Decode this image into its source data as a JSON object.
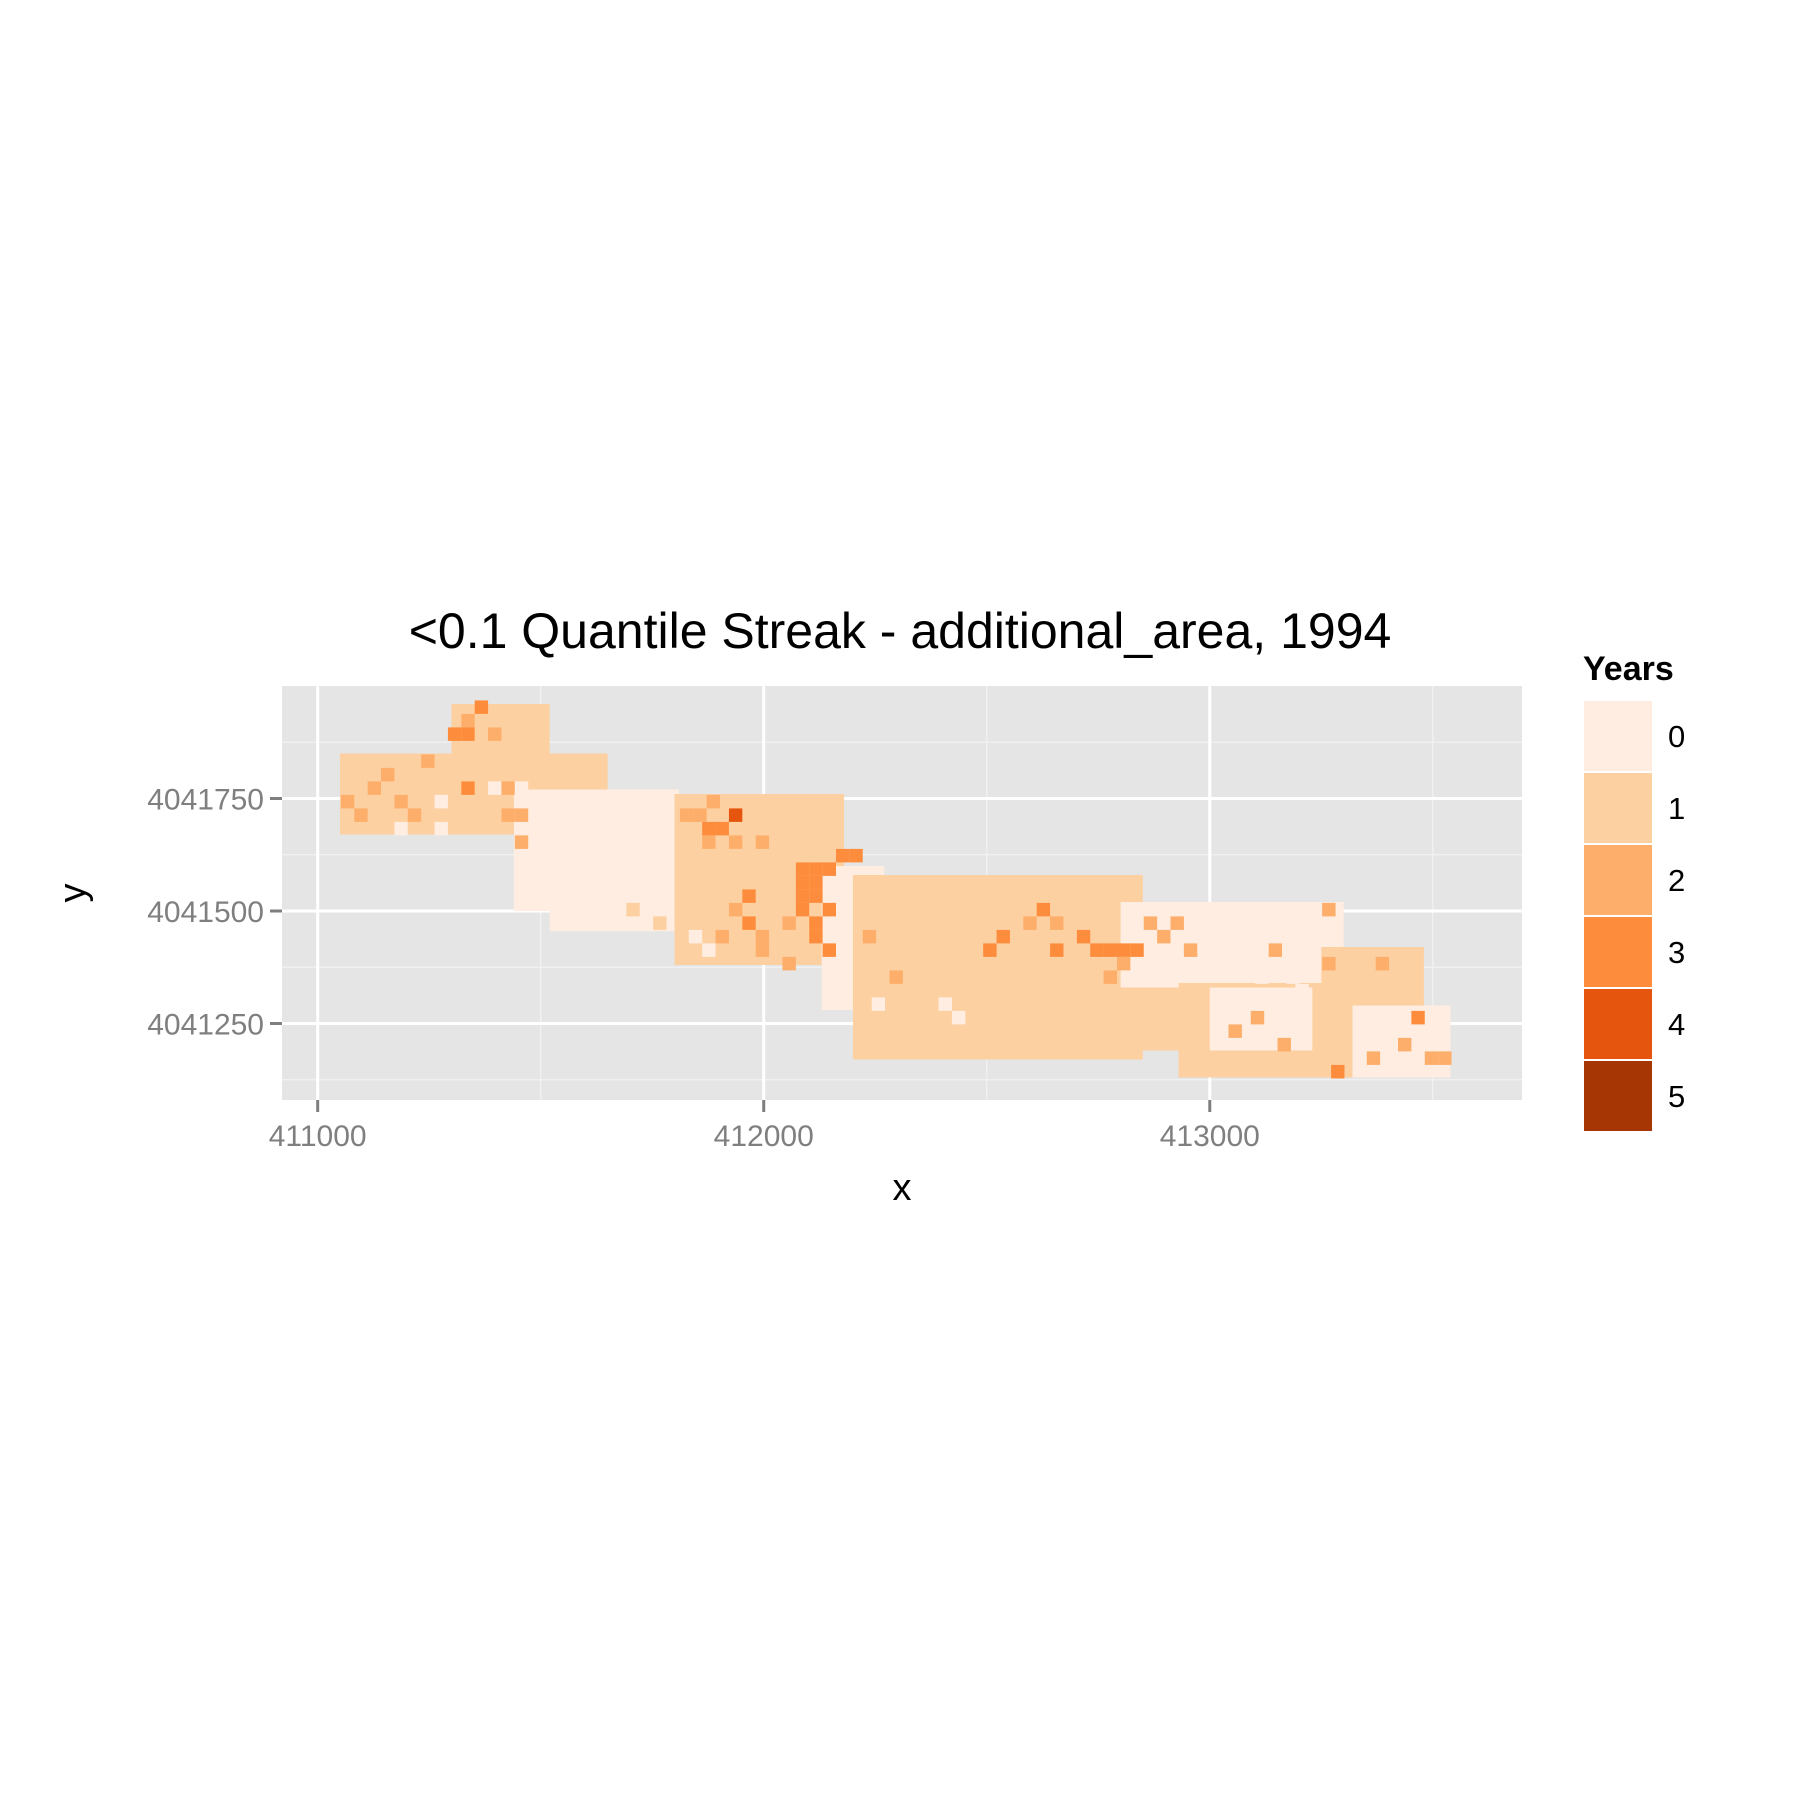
{
  "chart_data": {
    "type": "heatmap",
    "title": "<0.1 Quantile Streak - additional_area, 1994",
    "xlabel": "x",
    "ylabel": "y",
    "xlim": [
      410920,
      413700
    ],
    "ylim": [
      4041080,
      4042000
    ],
    "x_ticks": [
      411000,
      412000,
      413000
    ],
    "x_tick_labels": [
      "411000",
      "412000",
      "413000"
    ],
    "y_ticks": [
      4041250,
      4041500,
      4041750
    ],
    "y_tick_labels": [
      "4041250",
      "4041500",
      "4041750"
    ],
    "grid": true,
    "legend": {
      "title": "Years",
      "position": "right",
      "entries": [
        {
          "label": "0",
          "value": 0,
          "color": "#feede0"
        },
        {
          "label": "1",
          "value": 1,
          "color": "#fdd0a2"
        },
        {
          "label": "2",
          "value": 2,
          "color": "#fdae6b"
        },
        {
          "label": "3",
          "value": 3,
          "color": "#fd8d3c"
        },
        {
          "label": "4",
          "value": 4,
          "color": "#e6550d"
        },
        {
          "label": "5",
          "value": 5,
          "color": "#a63603"
        }
      ]
    },
    "cell_size": [
      30,
      30
    ],
    "regions": [
      {
        "value": 1,
        "x": [
          411050,
          411650
        ],
        "y": [
          4041670,
          4041850
        ]
      },
      {
        "value": 1,
        "x": [
          411300,
          411520
        ],
        "y": [
          4041850,
          4041960
        ]
      },
      {
        "value": 0,
        "x": [
          411440,
          411810
        ],
        "y": [
          4041500,
          4041770
        ]
      },
      {
        "value": 0,
        "x": [
          411520,
          411830
        ],
        "y": [
          4041455,
          4041560
        ]
      },
      {
        "value": 1,
        "x": [
          411800,
          412180
        ],
        "y": [
          4041380,
          4041760
        ]
      },
      {
        "value": 0,
        "x": [
          412130,
          412270
        ],
        "y": [
          4041280,
          4041600
        ]
      },
      {
        "value": 1,
        "x": [
          412200,
          412850
        ],
        "y": [
          4041170,
          4041580
        ]
      },
      {
        "value": 1,
        "x": [
          412600,
          412990
        ],
        "y": [
          4041190,
          4041520
        ]
      },
      {
        "value": 0,
        "x": [
          412800,
          413300
        ],
        "y": [
          4041330,
          4041520
        ]
      },
      {
        "value": 1,
        "x": [
          412930,
          413300
        ],
        "y": [
          4041130,
          4041340
        ]
      },
      {
        "value": 0,
        "x": [
          413000,
          413230
        ],
        "y": [
          4041190,
          4041330
        ]
      },
      {
        "value": 1,
        "x": [
          413250,
          413480
        ],
        "y": [
          4041130,
          4041420
        ]
      },
      {
        "value": 0,
        "x": [
          413320,
          413540
        ],
        "y": [
          4041130,
          4041290
        ]
      }
    ],
    "cells": [
      {
        "x": 411367,
        "y": 4041953,
        "v": 3
      },
      {
        "x": 411337,
        "y": 4041923,
        "v": 2
      },
      {
        "x": 411307,
        "y": 4041893,
        "v": 3
      },
      {
        "x": 411337,
        "y": 4041893,
        "v": 3
      },
      {
        "x": 411397,
        "y": 4041893,
        "v": 2
      },
      {
        "x": 411247,
        "y": 4041833,
        "v": 2
      },
      {
        "x": 411157,
        "y": 4041803,
        "v": 2
      },
      {
        "x": 411067,
        "y": 4041743,
        "v": 2
      },
      {
        "x": 411097,
        "y": 4041713,
        "v": 2
      },
      {
        "x": 411337,
        "y": 4041773,
        "v": 3
      },
      {
        "x": 411397,
        "y": 4041773,
        "v": 0
      },
      {
        "x": 411427,
        "y": 4041773,
        "v": 2
      },
      {
        "x": 411457,
        "y": 4041773,
        "v": 0
      },
      {
        "x": 411427,
        "y": 4041713,
        "v": 2
      },
      {
        "x": 411457,
        "y": 4041713,
        "v": 2
      },
      {
        "x": 411277,
        "y": 4041683,
        "v": 0
      },
      {
        "x": 411187,
        "y": 4041683,
        "v": 0
      },
      {
        "x": 411457,
        "y": 4041653,
        "v": 2
      },
      {
        "x": 411937,
        "y": 4041713,
        "v": 4
      },
      {
        "x": 411877,
        "y": 4041683,
        "v": 3
      },
      {
        "x": 411907,
        "y": 4041683,
        "v": 3
      },
      {
        "x": 411877,
        "y": 4041653,
        "v": 2
      },
      {
        "x": 411937,
        "y": 4041653,
        "v": 2
      },
      {
        "x": 411997,
        "y": 4041653,
        "v": 2
      },
      {
        "x": 412087,
        "y": 4041593,
        "v": 3
      },
      {
        "x": 412117,
        "y": 4041593,
        "v": 3
      },
      {
        "x": 412147,
        "y": 4041593,
        "v": 3
      },
      {
        "x": 412087,
        "y": 4041563,
        "v": 3
      },
      {
        "x": 412117,
        "y": 4041563,
        "v": 3
      },
      {
        "x": 412087,
        "y": 4041533,
        "v": 3
      },
      {
        "x": 412117,
        "y": 4041533,
        "v": 3
      },
      {
        "x": 412087,
        "y": 4041503,
        "v": 3
      },
      {
        "x": 412117,
        "y": 4041473,
        "v": 3
      },
      {
        "x": 412117,
        "y": 4041443,
        "v": 3
      },
      {
        "x": 412147,
        "y": 4041413,
        "v": 3
      },
      {
        "x": 412057,
        "y": 4041473,
        "v": 2
      },
      {
        "x": 411967,
        "y": 4041533,
        "v": 3
      },
      {
        "x": 411937,
        "y": 4041503,
        "v": 2
      },
      {
        "x": 411967,
        "y": 4041473,
        "v": 3
      },
      {
        "x": 411907,
        "y": 4041443,
        "v": 2
      },
      {
        "x": 411997,
        "y": 4041443,
        "v": 2
      },
      {
        "x": 411997,
        "y": 4041413,
        "v": 2
      },
      {
        "x": 411877,
        "y": 4041413,
        "v": 0
      },
      {
        "x": 411847,
        "y": 4041443,
        "v": 0
      },
      {
        "x": 412057,
        "y": 4041383,
        "v": 2
      },
      {
        "x": 412627,
        "y": 4041503,
        "v": 3
      },
      {
        "x": 412657,
        "y": 4041473,
        "v": 2
      },
      {
        "x": 412597,
        "y": 4041473,
        "v": 2
      },
      {
        "x": 412537,
        "y": 4041443,
        "v": 3
      },
      {
        "x": 412507,
        "y": 4041413,
        "v": 3
      },
      {
        "x": 412717,
        "y": 4041443,
        "v": 3
      },
      {
        "x": 412747,
        "y": 4041413,
        "v": 3
      },
      {
        "x": 412777,
        "y": 4041413,
        "v": 3
      },
      {
        "x": 412807,
        "y": 4041413,
        "v": 3
      },
      {
        "x": 412837,
        "y": 4041413,
        "v": 3
      },
      {
        "x": 412657,
        "y": 4041413,
        "v": 3
      },
      {
        "x": 412897,
        "y": 4041443,
        "v": 2
      },
      {
        "x": 412867,
        "y": 4041473,
        "v": 2
      },
      {
        "x": 412927,
        "y": 4041473,
        "v": 2
      },
      {
        "x": 412807,
        "y": 4041383,
        "v": 2
      },
      {
        "x": 412957,
        "y": 4041413,
        "v": 2
      },
      {
        "x": 412777,
        "y": 4041353,
        "v": 2
      },
      {
        "x": 412237,
        "y": 4041443,
        "v": 2
      },
      {
        "x": 412297,
        "y": 4041353,
        "v": 2
      },
      {
        "x": 413147,
        "y": 4041413,
        "v": 2
      },
      {
        "x": 413267,
        "y": 4041383,
        "v": 2
      },
      {
        "x": 413267,
        "y": 4041503,
        "v": 2
      },
      {
        "x": 413387,
        "y": 4041383,
        "v": 2
      },
      {
        "x": 413467,
        "y": 4041263,
        "v": 3
      },
      {
        "x": 413497,
        "y": 4041173,
        "v": 2
      },
      {
        "x": 413527,
        "y": 4041173,
        "v": 2
      },
      {
        "x": 413437,
        "y": 4041203,
        "v": 2
      },
      {
        "x": 413287,
        "y": 4041143,
        "v": 3
      },
      {
        "x": 413167,
        "y": 4041203,
        "v": 2
      },
      {
        "x": 413107,
        "y": 4041263,
        "v": 2
      },
      {
        "x": 413057,
        "y": 4041233,
        "v": 2
      },
      {
        "x": 413367,
        "y": 4041173,
        "v": 2
      },
      {
        "x": 413187,
        "y": 4041353,
        "v": 0
      },
      {
        "x": 412437,
        "y": 4041263,
        "v": 0
      },
      {
        "x": 412407,
        "y": 4041293,
        "v": 0
      },
      {
        "x": 412257,
        "y": 4041293,
        "v": 0
      },
      {
        "x": 413117,
        "y": 4041353,
        "v": 0
      },
      {
        "x": 413207,
        "y": 4041323,
        "v": 0
      },
      {
        "x": 411887,
        "y": 4041743,
        "v": 2
      },
      {
        "x": 411827,
        "y": 4041713,
        "v": 2
      },
      {
        "x": 411857,
        "y": 4041713,
        "v": 2
      },
      {
        "x": 411127,
        "y": 4041773,
        "v": 2
      },
      {
        "x": 411187,
        "y": 4041743,
        "v": 2
      },
      {
        "x": 411217,
        "y": 4041713,
        "v": 2
      },
      {
        "x": 411277,
        "y": 4041743,
        "v": 0
      },
      {
        "x": 412147,
        "y": 4041503,
        "v": 3
      },
      {
        "x": 412177,
        "y": 4041623,
        "v": 3
      },
      {
        "x": 412207,
        "y": 4041623,
        "v": 3
      },
      {
        "x": 411767,
        "y": 4041473,
        "v": 1
      },
      {
        "x": 411707,
        "y": 4041503,
        "v": 1
      }
    ]
  }
}
